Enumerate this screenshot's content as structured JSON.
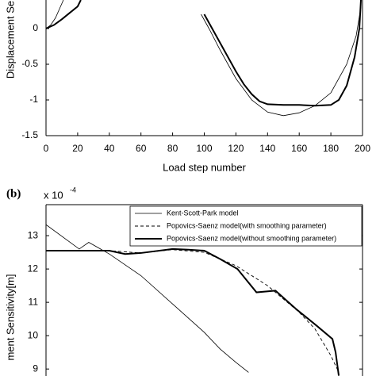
{
  "chart_data": [
    {
      "type": "line",
      "xlabel": "Load step number",
      "ylabel": "Displacement Se",
      "xlim": [
        0,
        200
      ],
      "xticks": [
        0,
        20,
        40,
        60,
        80,
        100,
        120,
        140,
        160,
        180,
        200
      ],
      "ylim": [
        -1.5,
        0.4
      ],
      "yticks": [
        0,
        -0.5,
        -1,
        -1.5
      ],
      "series": [
        {
          "color": "#000000",
          "line_style": "thick",
          "x": [
            0,
            5,
            10,
            15,
            20,
            22,
            95,
            100,
            105,
            110,
            115,
            120,
            125,
            130,
            135,
            140,
            150,
            160,
            170,
            180,
            185,
            190,
            195,
            198,
            199
          ],
          "values": [
            0,
            0.05,
            0.13,
            0.22,
            0.31,
            0.4,
            null,
            0.2,
            0.0,
            -0.2,
            -0.4,
            -0.6,
            -0.78,
            -0.92,
            -1.02,
            -1.06,
            -1.07,
            -1.07,
            -1.08,
            -1.07,
            -1.0,
            -0.8,
            -0.4,
            0,
            0.4
          ]
        },
        {
          "color": "#000000",
          "line_style": "thin",
          "x": [
            0,
            3,
            6,
            9,
            11,
            93,
            98,
            103,
            110,
            120,
            130,
            140,
            150,
            160,
            170,
            180,
            190,
            196,
            199
          ],
          "values": [
            0,
            0.05,
            0.15,
            0.3,
            0.4,
            null,
            0.2,
            0,
            -0.3,
            -0.7,
            -1.0,
            -1.17,
            -1.22,
            -1.18,
            -1.08,
            -0.9,
            -0.5,
            -0.1,
            0.3
          ]
        }
      ]
    },
    {
      "type": "line",
      "panel_label": "(b)",
      "multiplier": "x 10",
      "exponent": "-4",
      "ylabel": "ment Sensitivity[m]",
      "xlim": [
        0,
        200
      ],
      "ylim": [
        8.79,
        13.93
      ],
      "yticks": [
        9,
        10,
        11,
        12,
        13
      ],
      "legend": "upper right",
      "series": [
        {
          "name": "Kent-Scott-Park model",
          "color": "#000000",
          "line_style": "thin",
          "x": [
            0,
            21,
            27,
            40,
            60,
            80,
            100,
            110,
            120,
            128
          ],
          "values": [
            13.33,
            12.6,
            12.8,
            12.45,
            11.8,
            10.95,
            10.1,
            9.6,
            9.2,
            8.9
          ]
        },
        {
          "name": "Popovics-Saenz model(with smoothing parameter)",
          "color": "#000000",
          "line_style": "dashed",
          "x": [
            0,
            20,
            40,
            60,
            80,
            100,
            120,
            140,
            160,
            170,
            180,
            185
          ],
          "values": [
            12.55,
            12.55,
            12.55,
            12.48,
            12.58,
            12.5,
            12.1,
            11.5,
            10.7,
            10.2,
            9.4,
            8.9
          ]
        },
        {
          "name": "Popovics-Saenz model(without smoothing parameter)",
          "color": "#000000",
          "line_style": "thick",
          "x": [
            0,
            20,
            40,
            50,
            60,
            80,
            90,
            100,
            110,
            121,
            133,
            145,
            158,
            171,
            181,
            183,
            185
          ],
          "values": [
            12.55,
            12.55,
            12.55,
            12.45,
            12.48,
            12.6,
            12.58,
            12.55,
            12.3,
            12.0,
            11.3,
            11.35,
            10.8,
            10.3,
            9.9,
            9.5,
            8.8
          ]
        }
      ]
    }
  ]
}
